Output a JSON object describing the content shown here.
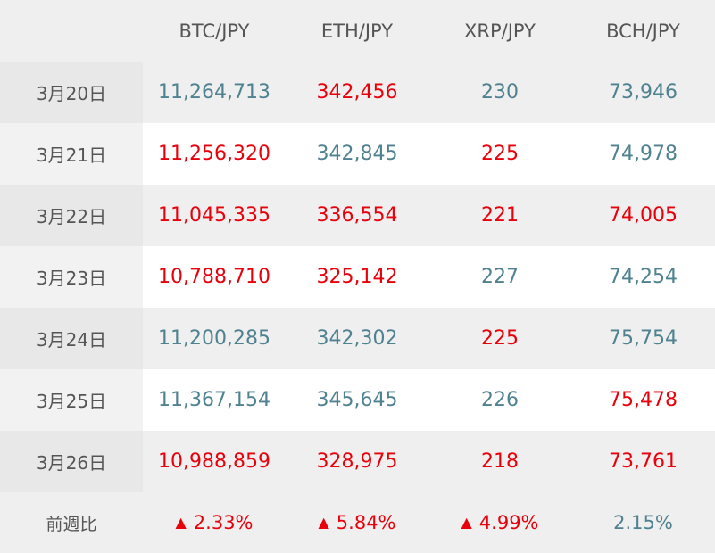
{
  "headers": [
    "",
    "BTC/JPY",
    "ETH/JPY",
    "XRP/JPY",
    "BCH/JPY"
  ],
  "colors": {
    "up": "#e8000b",
    "down": "#4f8290"
  },
  "rows": [
    {
      "date": "3月20日",
      "cells": [
        {
          "value": "11,264,713",
          "dir": "down"
        },
        {
          "value": "342,456",
          "dir": "up"
        },
        {
          "value": "230",
          "dir": "down"
        },
        {
          "value": "73,946",
          "dir": "down"
        }
      ]
    },
    {
      "date": "3月21日",
      "cells": [
        {
          "value": "11,256,320",
          "dir": "up"
        },
        {
          "value": "342,845",
          "dir": "down"
        },
        {
          "value": "225",
          "dir": "up"
        },
        {
          "value": "74,978",
          "dir": "down"
        }
      ]
    },
    {
      "date": "3月22日",
      "cells": [
        {
          "value": "11,045,335",
          "dir": "up"
        },
        {
          "value": "336,554",
          "dir": "up"
        },
        {
          "value": "221",
          "dir": "up"
        },
        {
          "value": "74,005",
          "dir": "up"
        }
      ]
    },
    {
      "date": "3月23日",
      "cells": [
        {
          "value": "10,788,710",
          "dir": "up"
        },
        {
          "value": "325,142",
          "dir": "up"
        },
        {
          "value": "227",
          "dir": "down"
        },
        {
          "value": "74,254",
          "dir": "down"
        }
      ]
    },
    {
      "date": "3月24日",
      "cells": [
        {
          "value": "11,200,285",
          "dir": "down"
        },
        {
          "value": "342,302",
          "dir": "down"
        },
        {
          "value": "225",
          "dir": "up"
        },
        {
          "value": "75,754",
          "dir": "down"
        }
      ]
    },
    {
      "date": "3月25日",
      "cells": [
        {
          "value": "11,367,154",
          "dir": "down"
        },
        {
          "value": "345,645",
          "dir": "down"
        },
        {
          "value": "226",
          "dir": "down"
        },
        {
          "value": "75,478",
          "dir": "up"
        }
      ]
    },
    {
      "date": "3月26日",
      "cells": [
        {
          "value": "10,988,859",
          "dir": "up"
        },
        {
          "value": "328,975",
          "dir": "up"
        },
        {
          "value": "218",
          "dir": "up"
        },
        {
          "value": "73,761",
          "dir": "up"
        }
      ]
    }
  ],
  "summary": {
    "label": "前週比",
    "cells": [
      {
        "arrow": "▲",
        "value": "2.33%",
        "dir": "up"
      },
      {
        "arrow": "▲",
        "value": "5.84%",
        "dir": "up"
      },
      {
        "arrow": "▲",
        "value": "4.99%",
        "dir": "up"
      },
      {
        "arrow": "",
        "value": "2.15%",
        "dir": "down"
      }
    ]
  }
}
